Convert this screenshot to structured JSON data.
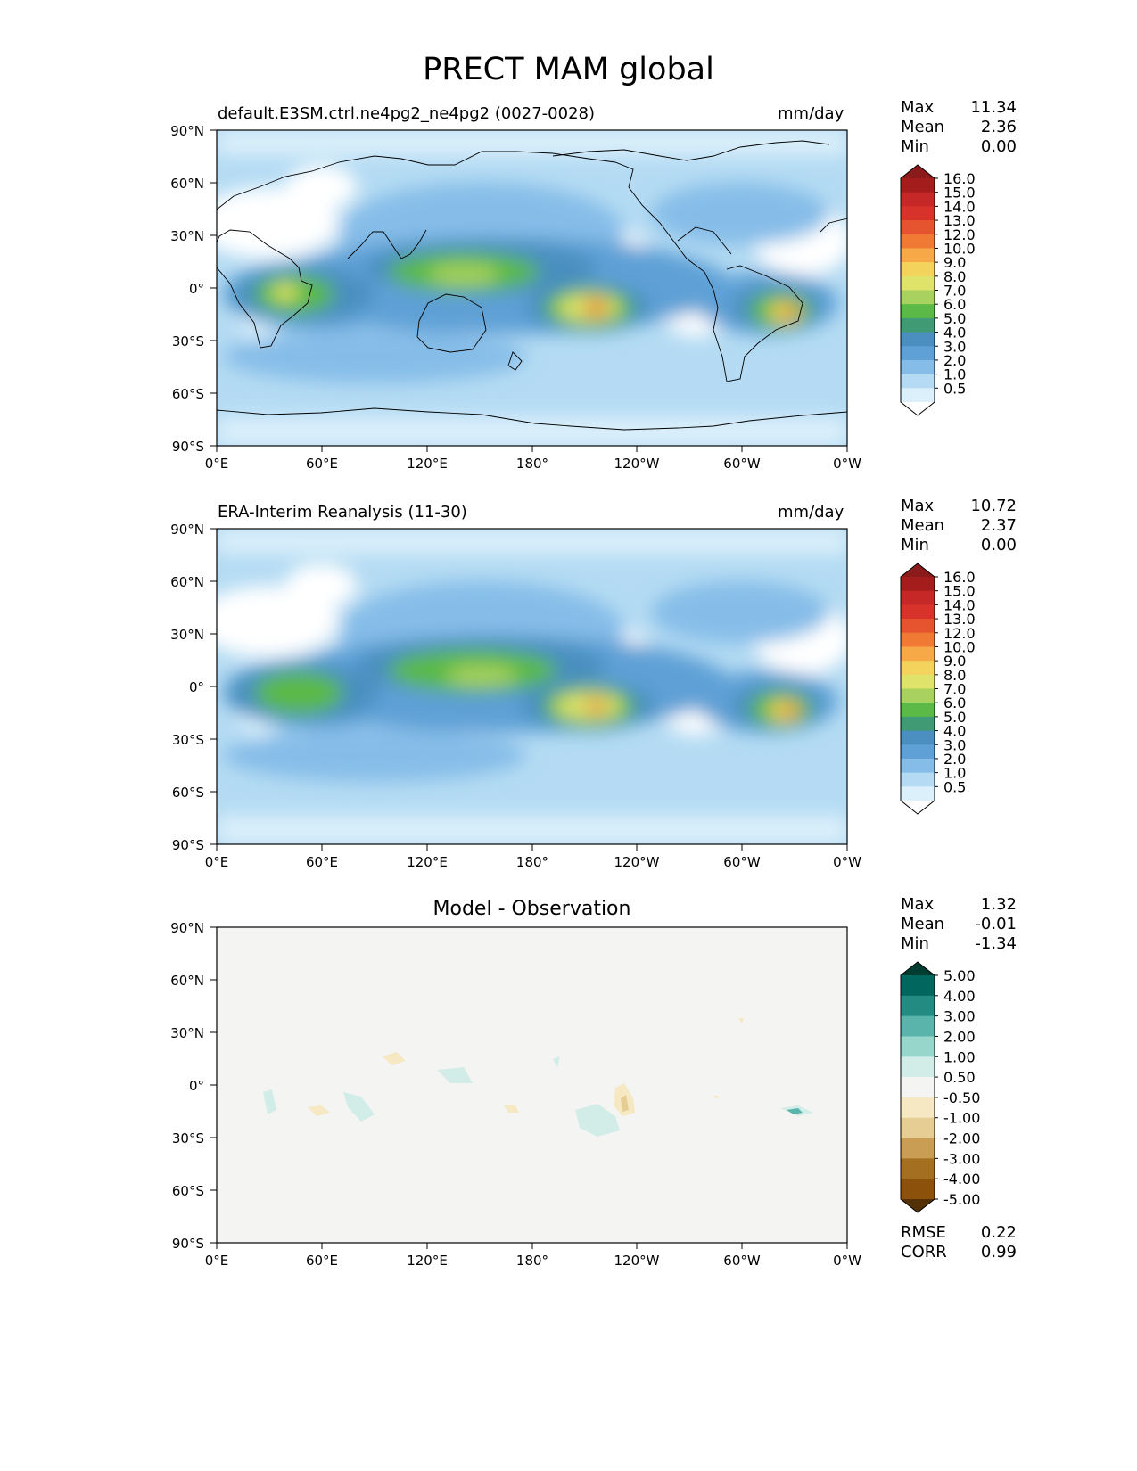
{
  "title": "PRECT MAM global",
  "axes": {
    "lat_ticks": [
      "90°N",
      "60°N",
      "30°N",
      "0°",
      "30°S",
      "60°S",
      "90°S"
    ],
    "lon_ticks": [
      "0°E",
      "60°E",
      "120°E",
      "180°",
      "120°W",
      "60°W",
      "0°W"
    ]
  },
  "panels": [
    {
      "title_left": "default.E3SM.ctrl.ne4pg2_ne4pg2 (0027-0028)",
      "title_right": "mm/day",
      "stats": [
        {
          "label": "Max",
          "value": "11.34"
        },
        {
          "label": "Mean",
          "value": "2.36"
        },
        {
          "label": "Min",
          "value": "0.00"
        }
      ],
      "colorbar": {
        "labels": [
          "16.0",
          "15.0",
          "14.0",
          "13.0",
          "12.0",
          "10.0",
          "9.0",
          "8.0",
          "7.0",
          "6.0",
          "5.0",
          "4.0",
          "3.0",
          "2.0",
          "1.0",
          "0.5"
        ],
        "colors": [
          "#8b1a1a",
          "#a51c1c",
          "#c62828",
          "#d8332b",
          "#e5542f",
          "#f07a34",
          "#f7a948",
          "#f3d35b",
          "#dfe36a",
          "#a8d15f",
          "#5ab947",
          "#409a73",
          "#4a8fbf",
          "#5fa0d6",
          "#86bde8",
          "#b4dbf3",
          "#dcf0fb",
          "#ffffff"
        ]
      }
    },
    {
      "title_left": "ERA-Interim Reanalysis (11-30)",
      "title_right": "mm/day",
      "stats": [
        {
          "label": "Max",
          "value": "10.72"
        },
        {
          "label": "Mean",
          "value": "2.37"
        },
        {
          "label": "Min",
          "value": "0.00"
        }
      ],
      "colorbar": {
        "labels": [
          "16.0",
          "15.0",
          "14.0",
          "13.0",
          "12.0",
          "10.0",
          "9.0",
          "8.0",
          "7.0",
          "6.0",
          "5.0",
          "4.0",
          "3.0",
          "2.0",
          "1.0",
          "0.5"
        ],
        "colors": [
          "#8b1a1a",
          "#a51c1c",
          "#c62828",
          "#d8332b",
          "#e5542f",
          "#f07a34",
          "#f7a948",
          "#f3d35b",
          "#dfe36a",
          "#a8d15f",
          "#5ab947",
          "#409a73",
          "#4a8fbf",
          "#5fa0d6",
          "#86bde8",
          "#b4dbf3",
          "#dcf0fb",
          "#ffffff"
        ]
      }
    },
    {
      "title_center": "Model - Observation",
      "stats": [
        {
          "label": "Max",
          "value": "1.32"
        },
        {
          "label": "Mean",
          "value": "-0.01"
        },
        {
          "label": "Min",
          "value": "-1.34"
        }
      ],
      "colorbar": {
        "labels": [
          "5.00",
          "4.00",
          "3.00",
          "2.00",
          "1.00",
          "0.50",
          "-0.50",
          "-1.00",
          "-2.00",
          "-3.00",
          "-4.00",
          "-5.00"
        ],
        "colors": [
          "#003c30",
          "#01665e",
          "#238b82",
          "#5ab4ac",
          "#97d6ca",
          "#d2ede8",
          "#f4f4f2",
          "#f6e8c3",
          "#e5cd93",
          "#c99e54",
          "#a56f21",
          "#8c510a",
          "#543005"
        ]
      },
      "rmse": {
        "label": "RMSE",
        "value": "0.22"
      },
      "corr": {
        "label": "CORR",
        "value": "0.99"
      }
    }
  ]
}
